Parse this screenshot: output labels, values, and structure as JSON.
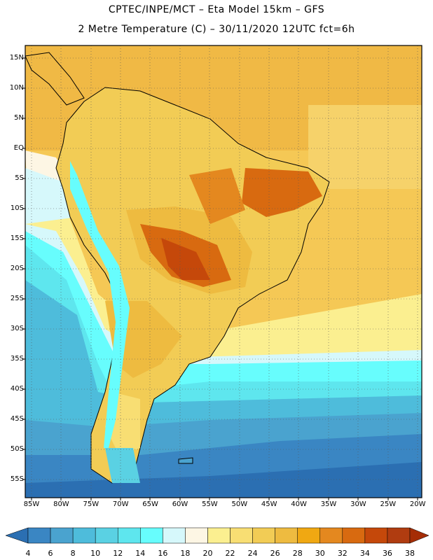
{
  "title": {
    "line1": "CPTEC/INPE/MCT –   Eta Model 15km – GFS",
    "line2": "2 Metre Temperature (C) – 30/11/2020 12UTC fct=6h"
  },
  "axes": {
    "lat_labels": [
      "15N",
      "10N",
      "5N",
      "EQ",
      "5S",
      "10S",
      "15S",
      "20S",
      "25S",
      "30S",
      "35S",
      "40S",
      "45S",
      "50S",
      "55S"
    ],
    "lon_labels": [
      "85W",
      "80W",
      "75W",
      "70W",
      "65W",
      "60W",
      "55W",
      "50W",
      "45W",
      "40W",
      "35W",
      "30W",
      "25W",
      "20W"
    ]
  },
  "colorbar": {
    "labels": [
      "4",
      "6",
      "8",
      "10",
      "12",
      "14",
      "16",
      "18",
      "20",
      "22",
      "24",
      "26",
      "28",
      "30",
      "32",
      "34",
      "36",
      "38"
    ],
    "colors": [
      "#2b6fb2",
      "#3a86c3",
      "#4aa3cf",
      "#4ebcdb",
      "#5ad1e3",
      "#5ee6ee",
      "#67fdfd",
      "#d6f8fb",
      "#fdf6e4",
      "#fbef90",
      "#f8de73",
      "#f2cc55",
      "#eebb40",
      "#f0a812",
      "#e4881f",
      "#d86a10",
      "#c5480a",
      "#b03c10",
      "#a52d06"
    ]
  }
}
